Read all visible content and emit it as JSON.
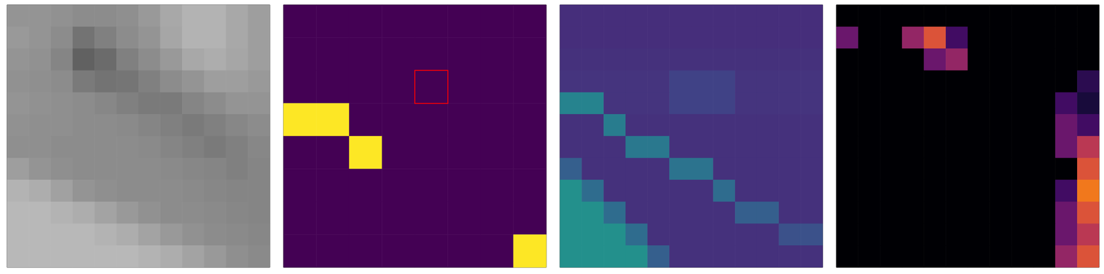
{
  "chart_data": [
    {
      "type": "heatmap",
      "color": "gray",
      "zlim": [
        0,
        1
      ],
      "tick_labels": false,
      "cells": [
        [
          0.58,
          0.58,
          0.57,
          0.55,
          0.55,
          0.56,
          0.6,
          0.66,
          0.7,
          0.7,
          0.66,
          0.62
        ],
        [
          0.6,
          0.58,
          0.55,
          0.45,
          0.5,
          0.55,
          0.58,
          0.65,
          0.7,
          0.7,
          0.66,
          0.62
        ],
        [
          0.58,
          0.57,
          0.52,
          0.38,
          0.42,
          0.5,
          0.55,
          0.6,
          0.66,
          0.68,
          0.65,
          0.62
        ],
        [
          0.57,
          0.56,
          0.55,
          0.48,
          0.45,
          0.46,
          0.5,
          0.55,
          0.58,
          0.62,
          0.62,
          0.6
        ],
        [
          0.58,
          0.57,
          0.56,
          0.55,
          0.53,
          0.5,
          0.48,
          0.48,
          0.52,
          0.55,
          0.58,
          0.58
        ],
        [
          0.57,
          0.56,
          0.56,
          0.55,
          0.55,
          0.54,
          0.52,
          0.5,
          0.48,
          0.5,
          0.53,
          0.55
        ],
        [
          0.56,
          0.56,
          0.55,
          0.55,
          0.55,
          0.55,
          0.54,
          0.52,
          0.5,
          0.48,
          0.5,
          0.53
        ],
        [
          0.62,
          0.58,
          0.56,
          0.55,
          0.55,
          0.55,
          0.55,
          0.54,
          0.53,
          0.52,
          0.5,
          0.52
        ],
        [
          0.7,
          0.68,
          0.63,
          0.58,
          0.56,
          0.55,
          0.55,
          0.55,
          0.54,
          0.53,
          0.52,
          0.52
        ],
        [
          0.72,
          0.72,
          0.7,
          0.68,
          0.64,
          0.6,
          0.57,
          0.55,
          0.55,
          0.54,
          0.53,
          0.52
        ],
        [
          0.72,
          0.72,
          0.72,
          0.72,
          0.7,
          0.68,
          0.64,
          0.6,
          0.57,
          0.55,
          0.54,
          0.53
        ],
        [
          0.72,
          0.72,
          0.72,
          0.72,
          0.72,
          0.72,
          0.7,
          0.68,
          0.64,
          0.6,
          0.56,
          0.54
        ]
      ]
    },
    {
      "type": "heatmap",
      "color": "viridis",
      "zlim": [
        0,
        1
      ],
      "tick_labels": false,
      "highlight_cell": {
        "row": 2,
        "col": 4,
        "color": "red"
      },
      "cells": [
        [
          0,
          0,
          0,
          0,
          0,
          0,
          0,
          0
        ],
        [
          0,
          0,
          0,
          0,
          0,
          0,
          0,
          0
        ],
        [
          0,
          0,
          0,
          0,
          0,
          0,
          0,
          0
        ],
        [
          1,
          1,
          0,
          0,
          0,
          0,
          0,
          0
        ],
        [
          0,
          0,
          1,
          0,
          0,
          0,
          0,
          0
        ],
        [
          0,
          0,
          0,
          0,
          0,
          0,
          0,
          0
        ],
        [
          0,
          0,
          0,
          0,
          0,
          0,
          0,
          0
        ],
        [
          0,
          0,
          0,
          0,
          0,
          0,
          0,
          1
        ]
      ]
    },
    {
      "type": "heatmap",
      "color": "viridis",
      "zlim": [
        0,
        1
      ],
      "tick_labels": false,
      "cells": [
        [
          0.13,
          0.13,
          0.13,
          0.13,
          0.13,
          0.13,
          0.13,
          0.13,
          0.13,
          0.13,
          0.13,
          0.13
        ],
        [
          0.13,
          0.13,
          0.13,
          0.13,
          0.13,
          0.13,
          0.13,
          0.13,
          0.13,
          0.13,
          0.13,
          0.13
        ],
        [
          0.14,
          0.14,
          0.14,
          0.14,
          0.14,
          0.14,
          0.14,
          0.14,
          0.14,
          0.14,
          0.14,
          0.14
        ],
        [
          0.15,
          0.15,
          0.15,
          0.15,
          0.15,
          0.2,
          0.2,
          0.2,
          0.15,
          0.15,
          0.15,
          0.15
        ],
        [
          0.45,
          0.45,
          0.15,
          0.15,
          0.15,
          0.2,
          0.2,
          0.2,
          0.15,
          0.15,
          0.15,
          0.15
        ],
        [
          0.14,
          0.14,
          0.42,
          0.14,
          0.14,
          0.14,
          0.14,
          0.14,
          0.14,
          0.14,
          0.14,
          0.14
        ],
        [
          0.14,
          0.14,
          0.14,
          0.4,
          0.4,
          0.14,
          0.14,
          0.14,
          0.14,
          0.14,
          0.14,
          0.14
        ],
        [
          0.3,
          0.14,
          0.14,
          0.14,
          0.14,
          0.38,
          0.38,
          0.14,
          0.14,
          0.14,
          0.14,
          0.14
        ],
        [
          0.5,
          0.35,
          0.14,
          0.14,
          0.14,
          0.14,
          0.14,
          0.35,
          0.14,
          0.14,
          0.14,
          0.14
        ],
        [
          0.5,
          0.5,
          0.35,
          0.14,
          0.14,
          0.14,
          0.14,
          0.14,
          0.3,
          0.3,
          0.14,
          0.14
        ],
        [
          0.5,
          0.5,
          0.5,
          0.35,
          0.14,
          0.14,
          0.14,
          0.14,
          0.14,
          0.14,
          0.25,
          0.25
        ],
        [
          0.5,
          0.5,
          0.5,
          0.5,
          0.3,
          0.14,
          0.14,
          0.14,
          0.14,
          0.14,
          0.14,
          0.14
        ]
      ]
    },
    {
      "type": "heatmap",
      "color": "inferno",
      "zlim": [
        0,
        1
      ],
      "tick_labels": false,
      "cells": [
        [
          0,
          0,
          0,
          0,
          0,
          0,
          0,
          0,
          0,
          0,
          0,
          0
        ],
        [
          0.3,
          0,
          0,
          0.4,
          0.6,
          0.2,
          0,
          0,
          0,
          0,
          0,
          0
        ],
        [
          0,
          0,
          0,
          0,
          0.3,
          0.4,
          0,
          0,
          0,
          0,
          0,
          0
        ],
        [
          0,
          0,
          0,
          0,
          0,
          0,
          0,
          0,
          0,
          0,
          0,
          0.15
        ],
        [
          0,
          0,
          0,
          0,
          0,
          0,
          0,
          0,
          0,
          0,
          0.2,
          0.1
        ],
        [
          0,
          0,
          0,
          0,
          0,
          0,
          0,
          0,
          0,
          0,
          0.3,
          0.2
        ],
        [
          0,
          0,
          0,
          0,
          0,
          0,
          0,
          0,
          0,
          0,
          0.3,
          0.5
        ],
        [
          0,
          0,
          0,
          0,
          0,
          0,
          0,
          0,
          0,
          0,
          0,
          0.6
        ],
        [
          0,
          0,
          0,
          0,
          0,
          0,
          0,
          0,
          0,
          0,
          0.2,
          0.7
        ],
        [
          0,
          0,
          0,
          0,
          0,
          0,
          0,
          0,
          0,
          0,
          0.3,
          0.6
        ],
        [
          0,
          0,
          0,
          0,
          0,
          0,
          0,
          0,
          0,
          0,
          0.3,
          0.5
        ],
        [
          0,
          0,
          0,
          0,
          0,
          0,
          0,
          0,
          0,
          0,
          0.4,
          0.6
        ]
      ]
    }
  ]
}
